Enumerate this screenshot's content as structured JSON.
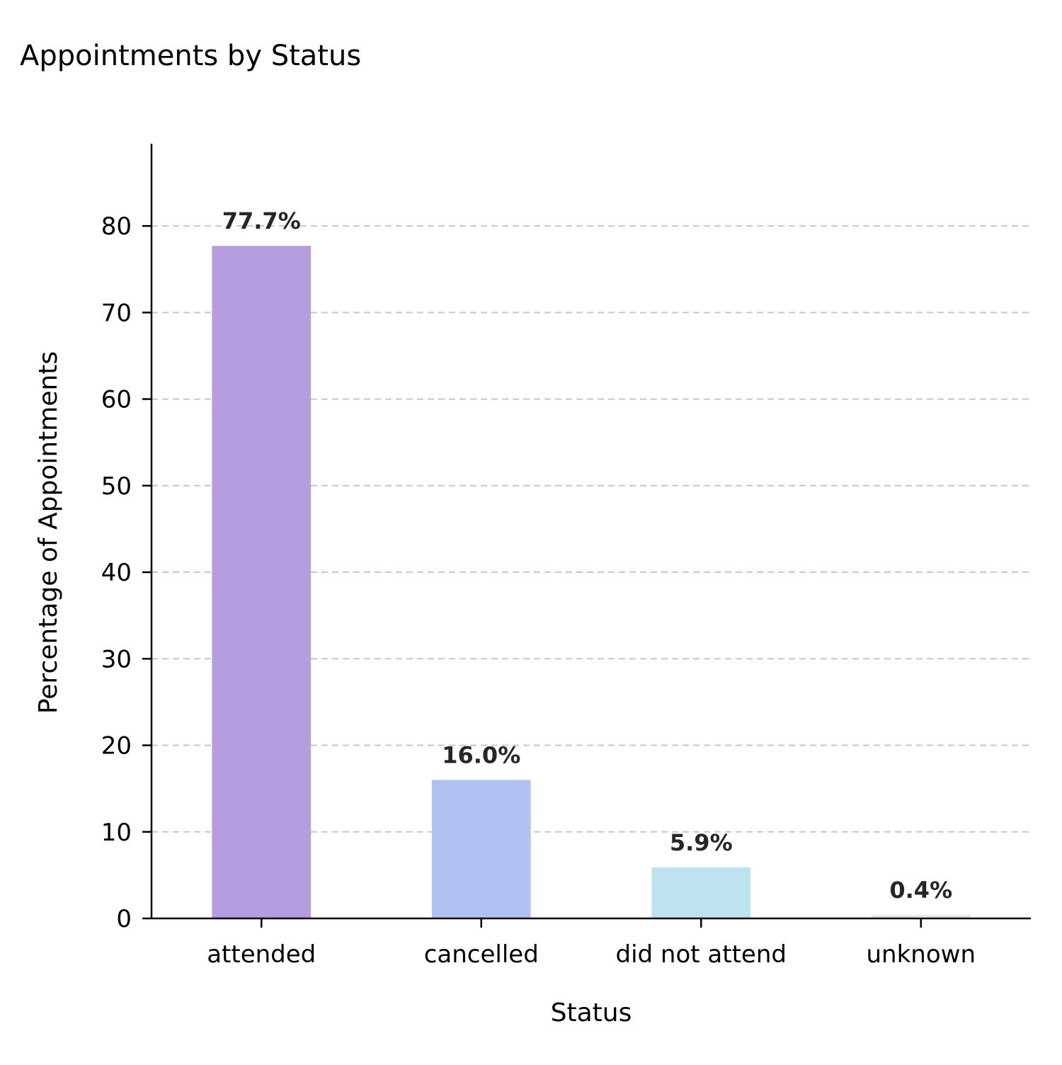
{
  "chart_data": {
    "type": "bar",
    "title": "Appointments by Status",
    "xlabel": "Status",
    "ylabel": "Percentage of Appointments",
    "categories": [
      "attended",
      "cancelled",
      "did not attend",
      "unknown"
    ],
    "values": [
      77.7,
      16.0,
      5.9,
      0.4
    ],
    "data_labels": [
      "77.7%",
      "16.0%",
      "5.9%",
      "0.4%"
    ],
    "colors": [
      "#b59de0",
      "#b1c1f1",
      "#bde3ef",
      "#e8e8e8"
    ],
    "ylim": [
      0,
      89.5
    ],
    "yticks": [
      0,
      10,
      20,
      30,
      40,
      50,
      60,
      70,
      80
    ],
    "grid": "y-dashed",
    "legend": "none"
  }
}
